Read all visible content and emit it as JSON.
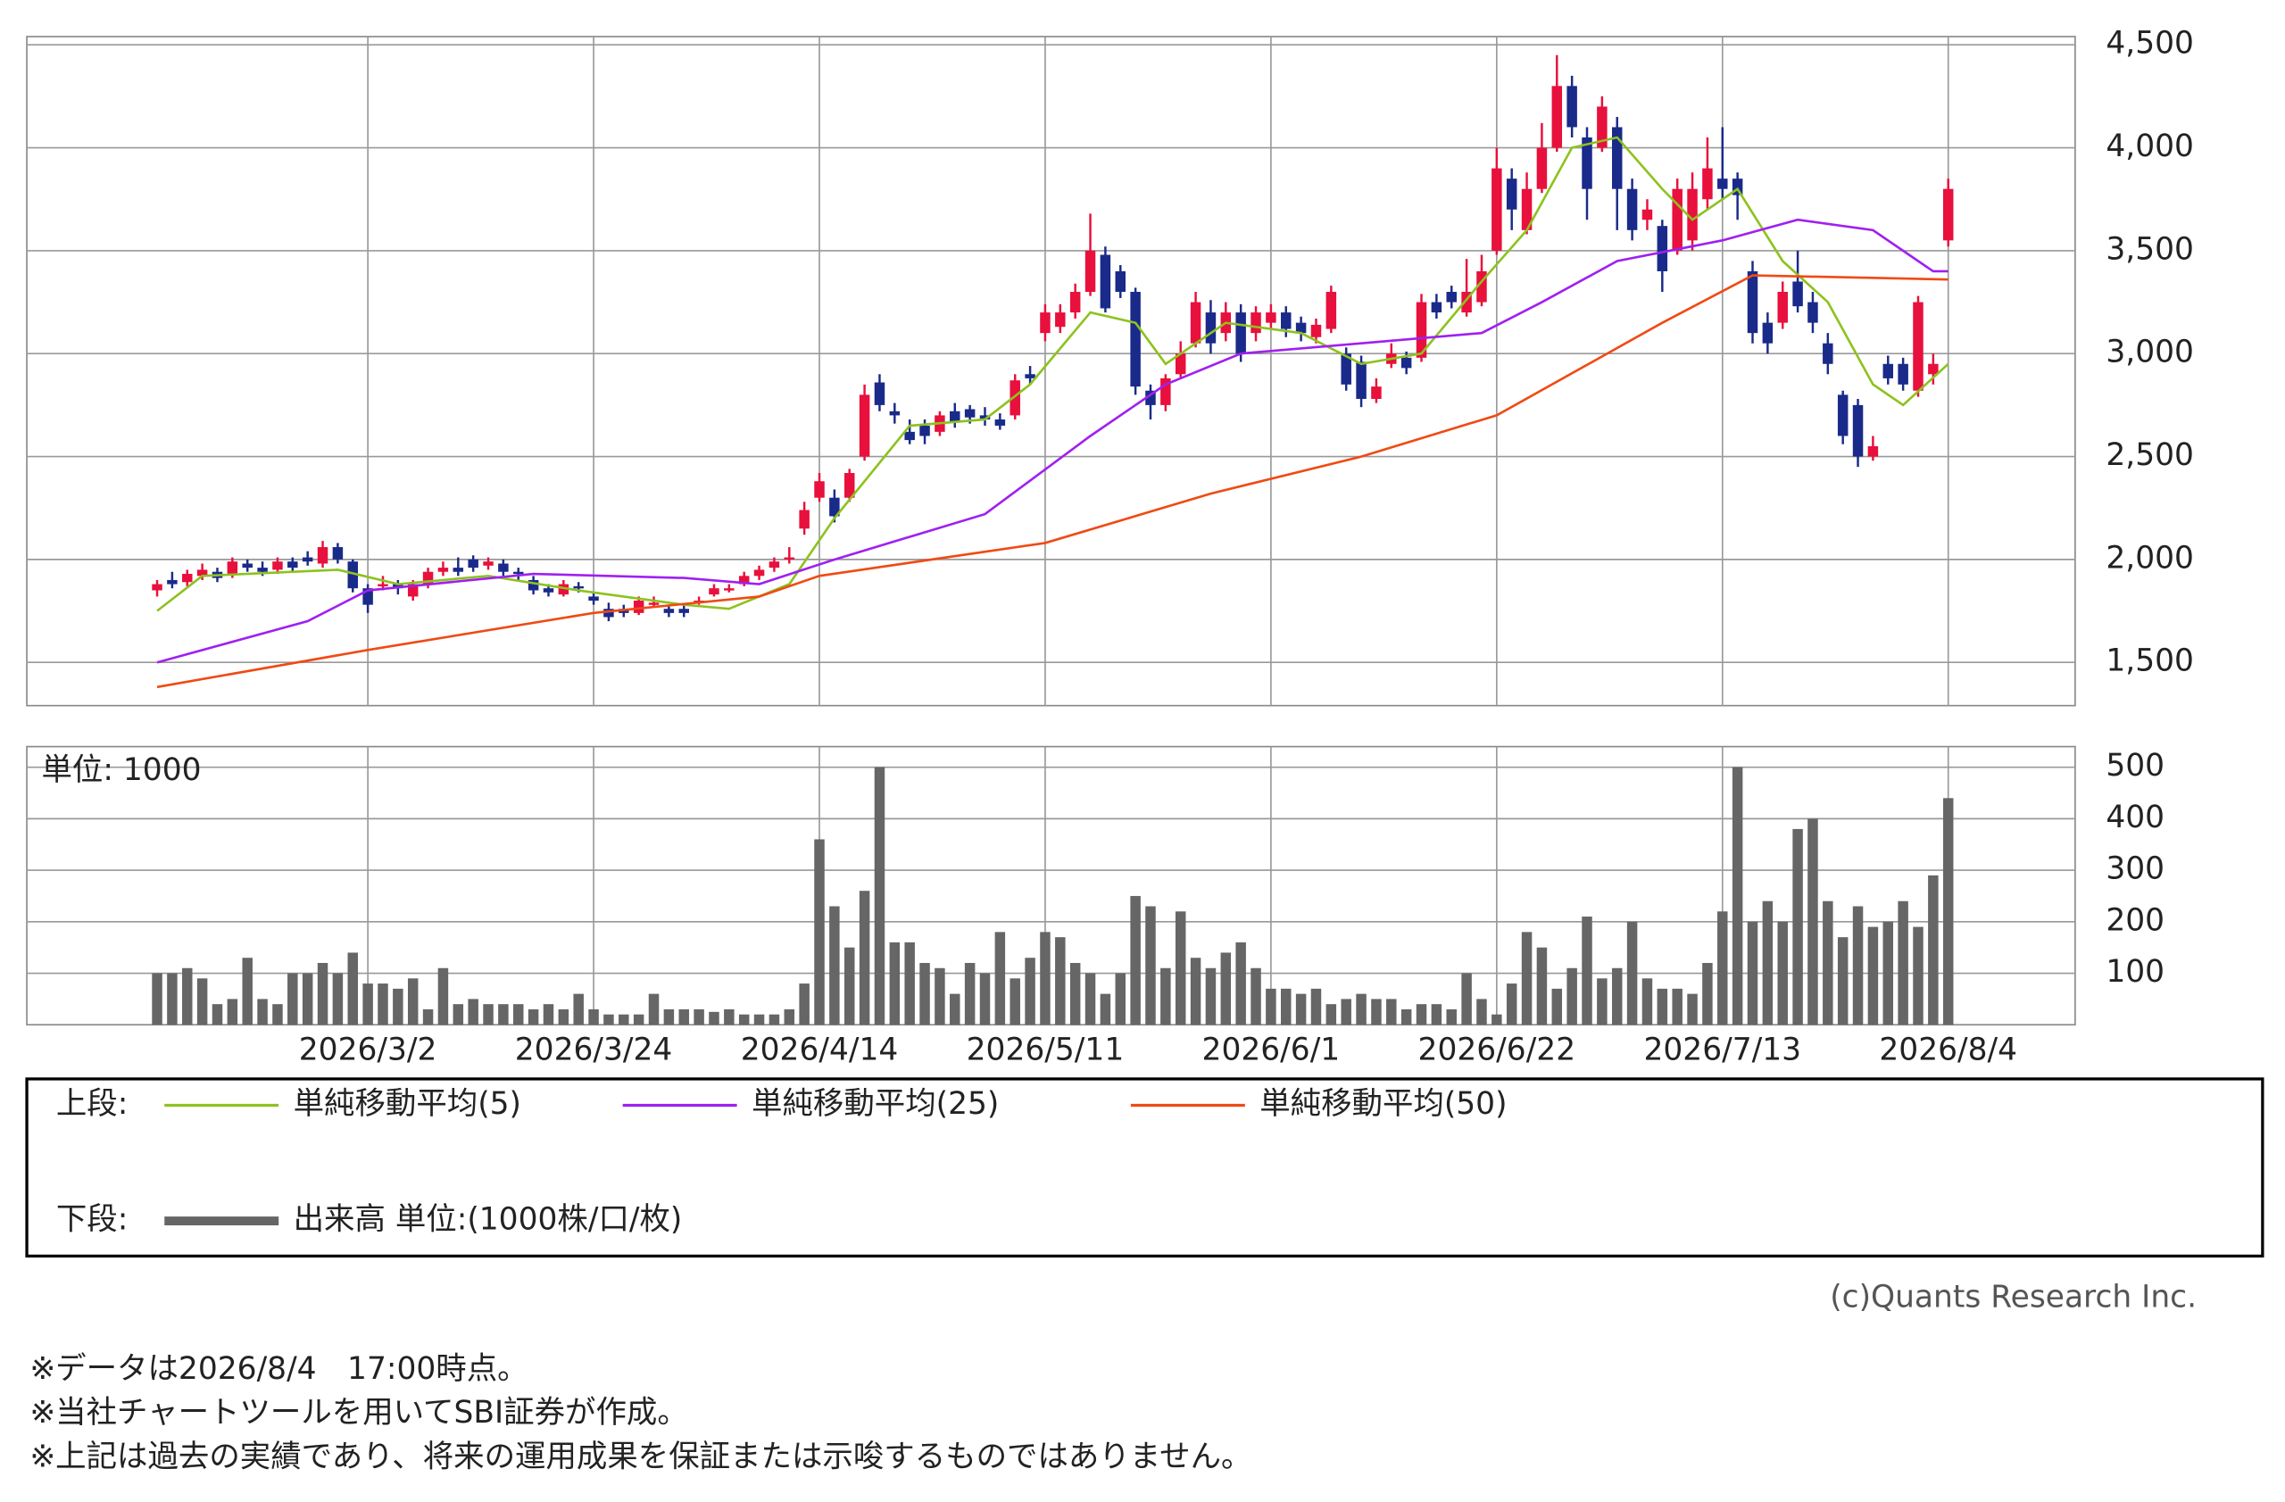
{
  "chart_data": {
    "type": "candlestick",
    "xticks": [
      {
        "value": 14,
        "label": "2026/3/2"
      },
      {
        "value": 29,
        "label": "2026/3/24"
      },
      {
        "value": 44,
        "label": "2026/4/14"
      },
      {
        "value": 59,
        "label": "2026/5/11"
      },
      {
        "value": 74,
        "label": "2026/6/1"
      },
      {
        "value": 89,
        "label": "2026/6/22"
      },
      {
        "value": 104,
        "label": "2026/7/13"
      },
      {
        "value": 119,
        "label": "2026/8/4"
      }
    ],
    "ylim": [
      1290,
      4540
    ],
    "yticks": [
      {
        "value": 1500,
        "label": "1,500"
      },
      {
        "value": 2000,
        "label": "2,000"
      },
      {
        "value": 2500,
        "label": "2,500"
      },
      {
        "value": 3000,
        "label": "3,000"
      },
      {
        "value": 3500,
        "label": "3,500"
      },
      {
        "value": 4000,
        "label": "4,000"
      },
      {
        "value": 4500,
        "label": "4,500"
      }
    ],
    "up_color": "#e8103c",
    "down_color": "#1a2a8a",
    "candles": [
      [
        1850,
        1900,
        1820,
        1880
      ],
      [
        1900,
        1940,
        1860,
        1880
      ],
      [
        1890,
        1950,
        1870,
        1930
      ],
      [
        1920,
        1980,
        1900,
        1950
      ],
      [
        1940,
        1960,
        1890,
        1910
      ],
      [
        1930,
        2010,
        1910,
        1990
      ],
      [
        1980,
        2000,
        1940,
        1960
      ],
      [
        1960,
        1990,
        1920,
        1940
      ],
      [
        1950,
        2010,
        1930,
        1990
      ],
      [
        1990,
        2010,
        1940,
        1960
      ],
      [
        2010,
        2040,
        1970,
        1990
      ],
      [
        1980,
        2090,
        1960,
        2060
      ],
      [
        2060,
        2080,
        1980,
        2000
      ],
      [
        1990,
        2000,
        1840,
        1860
      ],
      [
        1860,
        1880,
        1740,
        1780
      ],
      [
        1880,
        1920,
        1850,
        1880
      ],
      [
        1880,
        1900,
        1830,
        1860
      ],
      [
        1820,
        1900,
        1800,
        1880
      ],
      [
        1880,
        1960,
        1860,
        1940
      ],
      [
        1940,
        1990,
        1920,
        1960
      ],
      [
        1960,
        2010,
        1920,
        1940
      ],
      [
        2000,
        2020,
        1940,
        1960
      ],
      [
        1970,
        2010,
        1950,
        1990
      ],
      [
        1980,
        2000,
        1920,
        1940
      ],
      [
        1940,
        1960,
        1900,
        1930
      ],
      [
        1900,
        1920,
        1830,
        1850
      ],
      [
        1860,
        1880,
        1820,
        1840
      ],
      [
        1830,
        1900,
        1820,
        1880
      ],
      [
        1870,
        1890,
        1840,
        1860
      ],
      [
        1820,
        1840,
        1780,
        1800
      ],
      [
        1760,
        1790,
        1700,
        1720
      ],
      [
        1760,
        1780,
        1720,
        1740
      ],
      [
        1740,
        1820,
        1730,
        1800
      ],
      [
        1790,
        1820,
        1770,
        1790
      ],
      [
        1760,
        1780,
        1720,
        1740
      ],
      [
        1760,
        1780,
        1720,
        1740
      ],
      [
        1800,
        1820,
        1780,
        1800
      ],
      [
        1830,
        1880,
        1820,
        1860
      ],
      [
        1860,
        1880,
        1840,
        1860
      ],
      [
        1880,
        1940,
        1870,
        1920
      ],
      [
        1920,
        1970,
        1900,
        1950
      ],
      [
        1960,
        2010,
        1940,
        1990
      ],
      [
        2000,
        2060,
        1980,
        2010
      ],
      [
        2150,
        2280,
        2120,
        2240
      ],
      [
        2300,
        2420,
        2280,
        2380
      ],
      [
        2300,
        2340,
        2180,
        2210
      ],
      [
        2300,
        2440,
        2280,
        2420
      ],
      [
        2500,
        2850,
        2480,
        2800
      ],
      [
        2860,
        2900,
        2720,
        2750
      ],
      [
        2720,
        2760,
        2660,
        2700
      ],
      [
        2620,
        2680,
        2560,
        2580
      ],
      [
        2650,
        2680,
        2560,
        2600
      ],
      [
        2620,
        2720,
        2600,
        2700
      ],
      [
        2720,
        2760,
        2640,
        2670
      ],
      [
        2730,
        2750,
        2660,
        2690
      ],
      [
        2700,
        2740,
        2650,
        2680
      ],
      [
        2680,
        2710,
        2630,
        2650
      ],
      [
        2700,
        2900,
        2680,
        2870
      ],
      [
        2900,
        2940,
        2850,
        2880
      ],
      [
        3100,
        3240,
        3060,
        3200
      ],
      [
        3130,
        3240,
        3100,
        3200
      ],
      [
        3200,
        3340,
        3170,
        3300
      ],
      [
        3300,
        3680,
        3280,
        3500
      ],
      [
        3480,
        3520,
        3200,
        3220
      ],
      [
        3400,
        3430,
        3270,
        3300
      ],
      [
        3300,
        3320,
        2800,
        2840
      ],
      [
        2820,
        2850,
        2680,
        2750
      ],
      [
        2750,
        2900,
        2720,
        2880
      ],
      [
        2900,
        3060,
        2880,
        3000
      ],
      [
        3050,
        3300,
        3030,
        3250
      ],
      [
        3200,
        3260,
        3000,
        3050
      ],
      [
        3100,
        3250,
        3060,
        3200
      ],
      [
        3200,
        3240,
        2960,
        3000
      ],
      [
        3100,
        3230,
        3060,
        3200
      ],
      [
        3150,
        3240,
        3120,
        3200
      ],
      [
        3200,
        3230,
        3080,
        3120
      ],
      [
        3150,
        3180,
        3060,
        3100
      ],
      [
        3080,
        3170,
        3050,
        3140
      ],
      [
        3120,
        3330,
        3100,
        3300
      ],
      [
        3000,
        3030,
        2820,
        2850
      ],
      [
        2960,
        2990,
        2740,
        2780
      ],
      [
        2780,
        2880,
        2760,
        2840
      ],
      [
        2950,
        3050,
        2930,
        3000
      ],
      [
        2980,
        3010,
        2900,
        2930
      ],
      [
        2980,
        3290,
        2960,
        3250
      ],
      [
        3250,
        3290,
        3170,
        3200
      ],
      [
        3300,
        3330,
        3220,
        3250
      ],
      [
        3200,
        3460,
        3180,
        3300
      ],
      [
        3250,
        3480,
        3230,
        3400
      ],
      [
        3500,
        4000,
        3480,
        3900
      ],
      [
        3850,
        3900,
        3600,
        3700
      ],
      [
        3600,
        3880,
        3580,
        3800
      ],
      [
        3800,
        4120,
        3780,
        4000
      ],
      [
        4000,
        4450,
        3980,
        4300
      ],
      [
        4300,
        4350,
        4050,
        4100
      ],
      [
        4050,
        4100,
        3650,
        3800
      ],
      [
        4000,
        4250,
        3980,
        4200
      ],
      [
        4100,
        4150,
        3600,
        3800
      ],
      [
        3800,
        3850,
        3550,
        3600
      ],
      [
        3650,
        3750,
        3600,
        3700
      ],
      [
        3620,
        3650,
        3300,
        3400
      ],
      [
        3500,
        3850,
        3480,
        3800
      ],
      [
        3550,
        3880,
        3500,
        3800
      ],
      [
        3750,
        4050,
        3700,
        3900
      ],
      [
        3850,
        4100,
        3750,
        3800
      ],
      [
        3850,
        3880,
        3650,
        3770
      ],
      [
        3400,
        3450,
        3050,
        3100
      ],
      [
        3150,
        3200,
        3000,
        3050
      ],
      [
        3150,
        3350,
        3120,
        3300
      ],
      [
        3350,
        3500,
        3200,
        3230
      ],
      [
        3250,
        3300,
        3100,
        3150
      ],
      [
        3050,
        3100,
        2900,
        2950
      ],
      [
        2800,
        2820,
        2560,
        2600
      ],
      [
        2750,
        2780,
        2450,
        2500
      ],
      [
        2500,
        2600,
        2480,
        2550
      ],
      [
        2950,
        2990,
        2850,
        2880
      ],
      [
        2950,
        2980,
        2820,
        2850
      ],
      [
        2820,
        3280,
        2790,
        3250
      ],
      [
        2900,
        3000,
        2850,
        2950
      ],
      [
        3550,
        3850,
        3520,
        3800
      ]
    ],
    "series": [
      {
        "name": "単純移動平均(5)",
        "color": "#8dc21f",
        "x": [
          0,
          3,
          12,
          16,
          22,
          28,
          35,
          38,
          42,
          45,
          50,
          55,
          58,
          62,
          65,
          67,
          71,
          76,
          80,
          84,
          88,
          91,
          94,
          97,
          100,
          102,
          105,
          108,
          111,
          114,
          116,
          119
        ],
        "values": [
          1750,
          1920,
          1950,
          1880,
          1920,
          1850,
          1780,
          1760,
          1880,
          2200,
          2650,
          2680,
          2850,
          3200,
          3150,
          2950,
          3150,
          3100,
          2950,
          3000,
          3350,
          3600,
          4000,
          4050,
          3800,
          3650,
          3800,
          3450,
          3250,
          2850,
          2750,
          2950
        ]
      },
      {
        "name": "単純移動平均(25)",
        "color": "#a020f0",
        "x": [
          0,
          10,
          14,
          25,
          35,
          40,
          45,
          55,
          62,
          67,
          72,
          80,
          88,
          92,
          97,
          104,
          109,
          114,
          118,
          119
        ],
        "values": [
          1500,
          1700,
          1850,
          1930,
          1910,
          1880,
          2000,
          2220,
          2600,
          2850,
          3000,
          3050,
          3100,
          3250,
          3450,
          3550,
          3650,
          3600,
          3400,
          3400
        ]
      },
      {
        "name": "単純移動平均(50)",
        "color": "#f04a14",
        "x": [
          0,
          14,
          29,
          40,
          44,
          59,
          70,
          80,
          89,
          100,
          106,
          119
        ],
        "values": [
          1380,
          1560,
          1740,
          1820,
          1920,
          2080,
          2320,
          2500,
          2700,
          3150,
          3380,
          3360
        ]
      }
    ],
    "volume": {
      "name": "出来高 単位:(1000株/口/枚)",
      "unit_label": "単位: 1000",
      "color": "#666666",
      "ylim": [
        0,
        540
      ],
      "yticks": [
        100,
        200,
        300,
        400,
        500
      ],
      "values": [
        100,
        100,
        110,
        90,
        40,
        50,
        130,
        50,
        40,
        100,
        100,
        120,
        100,
        140,
        80,
        80,
        70,
        90,
        30,
        110,
        40,
        50,
        40,
        40,
        40,
        30,
        40,
        30,
        60,
        30,
        20,
        20,
        20,
        60,
        30,
        30,
        30,
        25,
        30,
        20,
        20,
        20,
        30,
        80,
        360,
        230,
        150,
        260,
        500,
        160,
        160,
        120,
        110,
        60,
        120,
        100,
        180,
        90,
        130,
        180,
        170,
        120,
        100,
        60,
        100,
        250,
        230,
        110,
        220,
        130,
        110,
        140,
        160,
        110,
        70,
        70,
        60,
        70,
        40,
        50,
        60,
        50,
        50,
        30,
        40,
        40,
        30,
        100,
        50,
        20,
        80,
        180,
        150,
        70,
        110,
        210,
        90,
        110,
        200,
        90,
        70,
        70,
        60,
        120,
        220,
        500,
        200,
        240,
        200,
        380,
        400,
        240,
        170,
        230,
        190,
        200,
        240,
        190,
        290,
        440
      ]
    },
    "legend": {
      "upper": "上段:",
      "lower": "下段:"
    },
    "credit": "(c)Quants Research Inc.",
    "notes": [
      "※データは2026/8/4　17:00時点。",
      "※当社チャートツールを用いてSBI証券が作成。",
      "※上記は過去の実績であり、将来の運用成果を保証または示唆するものではありません。"
    ]
  }
}
